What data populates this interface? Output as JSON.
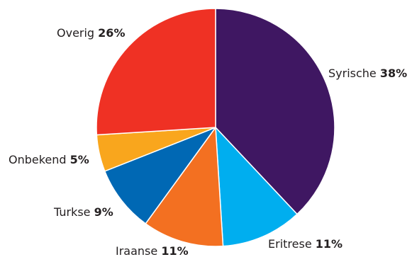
{
  "chart_data": {
    "type": "pie",
    "title": "",
    "slices": [
      {
        "label": "Syrische",
        "value": 38,
        "value_label": "38%",
        "color": "#3f1762"
      },
      {
        "label": "Eritrese",
        "value": 11,
        "value_label": "11%",
        "color": "#00aeef"
      },
      {
        "label": "Iraanse",
        "value": 11,
        "value_label": "11%",
        "color": "#f37021"
      },
      {
        "label": "Turkse",
        "value": 9,
        "value_label": "9%",
        "color": "#0068b4"
      },
      {
        "label": "Onbekend",
        "value": 5,
        "value_label": "5%",
        "color": "#f9a61d"
      },
      {
        "label": "Overig",
        "value": 26,
        "value_label": "26%",
        "color": "#ef3124"
      }
    ]
  }
}
